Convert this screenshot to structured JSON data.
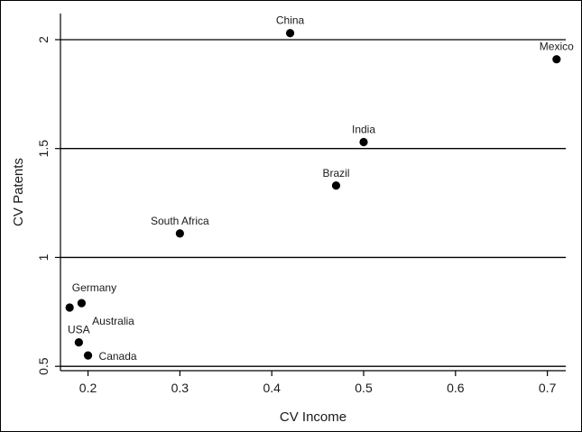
{
  "chart_data": {
    "type": "scatter",
    "title": "",
    "xlabel": "CV Income",
    "ylabel": "CV Patents",
    "xlim": [
      0.17,
      0.72
    ],
    "ylim": [
      0.48,
      2.12
    ],
    "xticks": [
      0.2,
      0.3,
      0.4,
      0.5,
      0.6,
      0.7
    ],
    "xtick_labels": [
      "0.2",
      "0.3",
      "0.4",
      "0.5",
      "0.6",
      "0.7"
    ],
    "yticks": [
      0.5,
      1,
      1.5,
      2
    ],
    "ytick_labels": [
      "0.5",
      "1",
      "1.5",
      "2"
    ],
    "grid": "horizontal",
    "legend": "none",
    "colors": {
      "points": "#000000",
      "grid": "#000000",
      "text": "#1a1a1a"
    },
    "points": [
      {
        "label": "China",
        "x": 0.42,
        "y": 2.03,
        "label_pos": "above"
      },
      {
        "label": "Mexico",
        "x": 0.71,
        "y": 1.91,
        "label_pos": "above"
      },
      {
        "label": "India",
        "x": 0.5,
        "y": 1.53,
        "label_pos": "above"
      },
      {
        "label": "Brazil",
        "x": 0.47,
        "y": 1.33,
        "label_pos": "above"
      },
      {
        "label": "South Africa",
        "x": 0.3,
        "y": 1.11,
        "label_pos": "above"
      },
      {
        "label": "Germany",
        "x": 0.193,
        "y": 0.79,
        "label_pos": "above-right"
      },
      {
        "label": "Australia",
        "x": 0.18,
        "y": 0.77,
        "label_pos": "below-right"
      },
      {
        "label": "USA",
        "x": 0.19,
        "y": 0.61,
        "label_pos": "above"
      },
      {
        "label": "Canada",
        "x": 0.2,
        "y": 0.55,
        "label_pos": "right"
      }
    ]
  }
}
